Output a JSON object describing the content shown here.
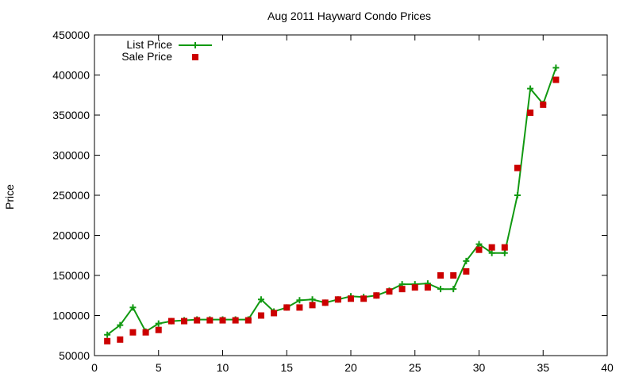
{
  "chart_data": {
    "type": "line",
    "title": "Aug 2011 Hayward Condo Prices",
    "xlabel": "",
    "ylabel": "Price",
    "xlim": [
      0,
      40
    ],
    "ylim": [
      50000,
      450000
    ],
    "xticks": [
      0,
      5,
      10,
      15,
      20,
      25,
      30,
      35,
      40
    ],
    "yticks": [
      50000,
      100000,
      150000,
      200000,
      250000,
      300000,
      350000,
      400000,
      450000
    ],
    "legend_position": "top-left",
    "grid": false,
    "series": [
      {
        "name": "List Price",
        "style": "line+cross",
        "color": "#119911",
        "x": [
          1,
          2,
          3,
          4,
          5,
          6,
          7,
          8,
          9,
          10,
          11,
          12,
          13,
          14,
          15,
          16,
          17,
          18,
          19,
          20,
          21,
          22,
          23,
          24,
          25,
          26,
          27,
          28,
          29,
          30,
          31,
          32,
          33,
          34,
          35,
          36
        ],
        "y": [
          76000,
          88000,
          110000,
          80000,
          90000,
          93000,
          94000,
          95000,
          95000,
          95000,
          95000,
          95000,
          120000,
          105000,
          110000,
          119000,
          120000,
          116000,
          120000,
          124000,
          123000,
          125000,
          131000,
          139000,
          139000,
          140000,
          133000,
          133000,
          168000,
          189000,
          178000,
          178000,
          250000,
          383000,
          364000,
          409000
        ]
      },
      {
        "name": "Sale Price",
        "style": "square",
        "color": "#cc0000",
        "x": [
          1,
          2,
          3,
          4,
          5,
          6,
          7,
          8,
          9,
          10,
          11,
          12,
          13,
          14,
          15,
          16,
          17,
          18,
          19,
          20,
          21,
          22,
          23,
          24,
          25,
          26,
          27,
          28,
          29,
          30,
          31,
          32,
          33,
          34,
          35,
          36
        ],
        "y": [
          68000,
          70000,
          79000,
          79000,
          82000,
          93000,
          93000,
          94000,
          94000,
          94000,
          94000,
          94000,
          100000,
          103000,
          110000,
          110000,
          113000,
          116000,
          120000,
          121000,
          121000,
          125000,
          130000,
          133000,
          135000,
          135000,
          150000,
          150000,
          155000,
          182000,
          185000,
          185000,
          284000,
          353000,
          363000,
          394000
        ]
      }
    ]
  }
}
